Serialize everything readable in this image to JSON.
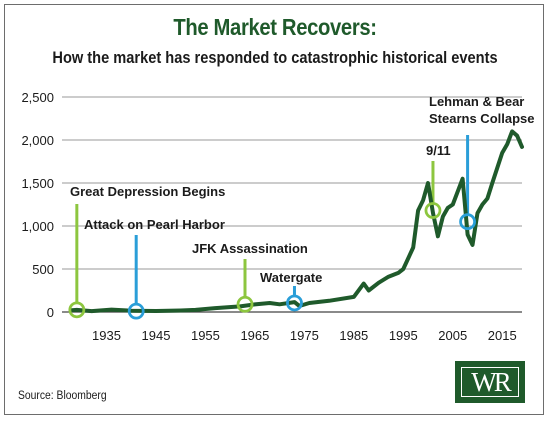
{
  "chart_data": {
    "type": "line",
    "title": "The Market Recovers:",
    "subtitle": "How the market has responded to catastrophic historical events",
    "source": "Source: Bloomberg",
    "logo_text": "WR",
    "xlim": [
      1926,
      2019
    ],
    "ylim": [
      0,
      2500
    ],
    "x_ticks": [
      1935,
      1945,
      1955,
      1965,
      1975,
      1985,
      1995,
      2005,
      2015
    ],
    "x_tick_labels": [
      "1935",
      "1945",
      "1955",
      "1965",
      "1975",
      "1985",
      "1995",
      "2005",
      "2015"
    ],
    "y_ticks": [
      0,
      500,
      1000,
      1500,
      2000,
      2500
    ],
    "y_tick_labels": [
      "0",
      "500",
      "1,000",
      "1,500",
      "2,000",
      "2,500"
    ],
    "grid": true,
    "colors": {
      "title": "#1f5a2b",
      "line": "#1f5a2b",
      "grid": "#9a9a9a",
      "marker_green": "#8dc63f",
      "marker_blue": "#2a9ed8"
    },
    "series": [
      {
        "x": [
          1928,
          1929,
          1932,
          1936,
          1940,
          1945,
          1950,
          1953,
          1957,
          1962,
          1965,
          1968,
          1970,
          1973,
          1974,
          1976,
          1980,
          1985,
          1987,
          1988,
          1990,
          1992,
          1994,
          1995,
          1997,
          1998,
          1999,
          2000,
          2001,
          2002,
          2003,
          2004,
          2005,
          2006,
          2007,
          2008,
          2009,
          2010,
          2011,
          2012,
          2013,
          2015,
          2016,
          2017,
          2018,
          2019
        ],
        "y": [
          20,
          25,
          10,
          28,
          15,
          12,
          18,
          25,
          45,
          65,
          88,
          105,
          90,
          115,
          70,
          105,
          130,
          175,
          330,
          250,
          340,
          410,
          455,
          500,
          750,
          1180,
          1300,
          1500,
          1150,
          880,
          1110,
          1210,
          1250,
          1400,
          1550,
          900,
          780,
          1150,
          1250,
          1320,
          1500,
          1850,
          1950,
          2100,
          2050,
          1920
        ]
      }
    ],
    "annotations": [
      {
        "label": "Great Depression Begins",
        "x": 1929,
        "y": 25,
        "color": "green"
      },
      {
        "label": "Attack on Pearl Harbor",
        "x": 1941,
        "y": 10,
        "color": "blue"
      },
      {
        "label": "JFK Assassination",
        "x": 1963,
        "y": 90,
        "color": "green"
      },
      {
        "label": "Watergate",
        "x": 1973,
        "y": 105,
        "color": "blue"
      },
      {
        "label": "9/11",
        "x": 2001,
        "y": 1180,
        "color": "green"
      },
      {
        "label": "Lehman & Bear Stearns Collapse",
        "x": 2008,
        "y": 1050,
        "color": "blue",
        "label_lines": [
          "Lehman & Bear",
          "Stearns Collapse"
        ]
      }
    ]
  }
}
